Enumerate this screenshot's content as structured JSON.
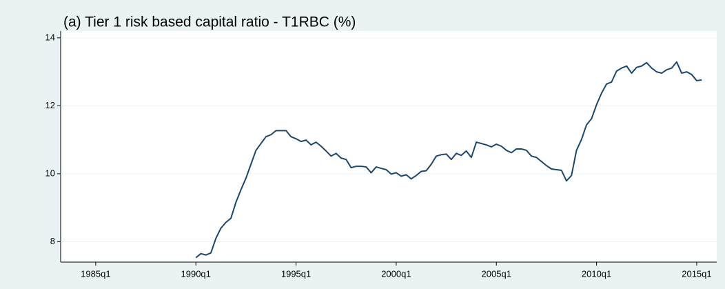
{
  "chart_data": {
    "type": "line",
    "title": "(a) Tier 1 risk based capital ratio - T1RBC (%)",
    "x": [
      "1990q1",
      "1990q2",
      "1990q3",
      "1990q4",
      "1991q1",
      "1991q2",
      "1991q3",
      "1991q4",
      "1992q1",
      "1992q2",
      "1992q3",
      "1992q4",
      "1993q1",
      "1993q2",
      "1993q3",
      "1993q4",
      "1994q1",
      "1994q2",
      "1994q3",
      "1994q4",
      "1995q1",
      "1995q2",
      "1995q3",
      "1995q4",
      "1996q1",
      "1996q2",
      "1996q3",
      "1996q4",
      "1997q1",
      "1997q2",
      "1997q3",
      "1997q4",
      "1998q1",
      "1998q2",
      "1998q3",
      "1998q4",
      "1999q1",
      "1999q2",
      "1999q3",
      "1999q4",
      "2000q1",
      "2000q2",
      "2000q3",
      "2000q4",
      "2001q1",
      "2001q2",
      "2001q3",
      "2001q4",
      "2002q1",
      "2002q2",
      "2002q3",
      "2002q4",
      "2003q1",
      "2003q2",
      "2003q3",
      "2003q4",
      "2004q1",
      "2004q2",
      "2004q3",
      "2004q4",
      "2005q1",
      "2005q2",
      "2005q3",
      "2005q4",
      "2006q1",
      "2006q2",
      "2006q3",
      "2006q4",
      "2007q1",
      "2007q2",
      "2007q3",
      "2007q4",
      "2008q1",
      "2008q2",
      "2008q3",
      "2008q4",
      "2009q1",
      "2009q2",
      "2009q3",
      "2009q4",
      "2010q1",
      "2010q2",
      "2010q3",
      "2010q4",
      "2011q1",
      "2011q2",
      "2011q3",
      "2011q4",
      "2012q1",
      "2012q2",
      "2012q3",
      "2012q4",
      "2013q1",
      "2013q2",
      "2013q3",
      "2013q4",
      "2014q1",
      "2014q2",
      "2014q3",
      "2014q4",
      "2015q1",
      "2015q2"
    ],
    "series": [
      {
        "color": "#1a476f",
        "values": [
          7.53,
          7.65,
          7.61,
          7.67,
          8.1,
          8.4,
          8.57,
          8.69,
          9.16,
          9.53,
          9.87,
          10.28,
          10.69,
          10.89,
          11.09,
          11.15,
          11.27,
          11.27,
          11.27,
          11.09,
          11.03,
          10.95,
          10.99,
          10.85,
          10.93,
          10.81,
          10.67,
          10.52,
          10.6,
          10.46,
          10.42,
          10.18,
          10.22,
          10.22,
          10.2,
          10.03,
          10.2,
          10.16,
          10.12,
          9.99,
          10.03,
          9.93,
          9.97,
          9.85,
          9.95,
          10.07,
          10.09,
          10.28,
          10.52,
          10.56,
          10.58,
          10.42,
          10.6,
          10.54,
          10.67,
          10.48,
          10.93,
          10.89,
          10.85,
          10.79,
          10.87,
          10.81,
          10.69,
          10.62,
          10.73,
          10.73,
          10.69,
          10.52,
          10.48,
          10.36,
          10.24,
          10.14,
          10.12,
          10.1,
          9.79,
          9.95,
          10.69,
          11.01,
          11.44,
          11.62,
          12.03,
          12.37,
          12.64,
          12.7,
          13.02,
          13.11,
          13.17,
          12.96,
          13.13,
          13.17,
          13.27,
          13.11,
          13.0,
          12.96,
          13.06,
          13.11,
          13.29,
          12.96,
          13.0,
          12.92,
          12.74,
          12.76
        ]
      }
    ],
    "xlim": [
      "1983q2",
      "2016q1"
    ],
    "xticks": [
      "1985q1",
      "1990q1",
      "1995q1",
      "2000q1",
      "2005q1",
      "2010q1",
      "2015q1"
    ],
    "ylim": [
      7.4,
      14.2
    ],
    "yticks": [
      8,
      10,
      12,
      14
    ],
    "grid": true
  }
}
